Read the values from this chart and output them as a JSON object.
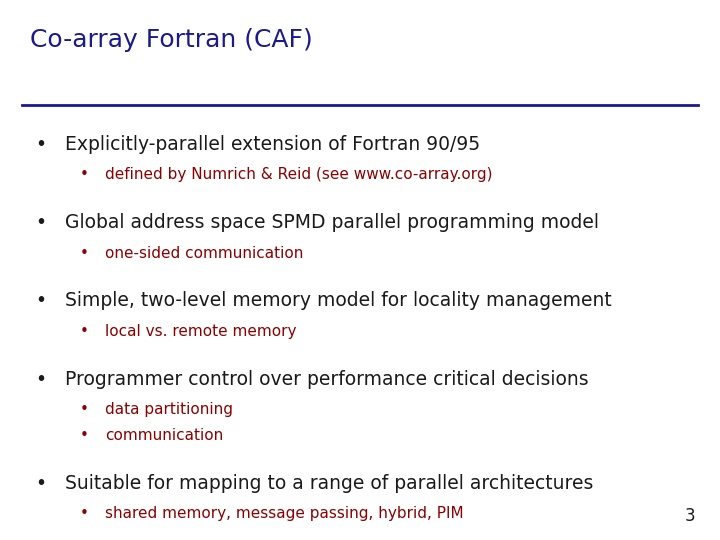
{
  "title": "Co-array Fortran (CAF)",
  "title_color": "#1a1a8c",
  "title_fontsize": 18,
  "background_color": "#ffffff",
  "line_color": "#1a1a8c",
  "bullet_color": "#1a1a1a",
  "sub_bullet_color": "#8b0000",
  "page_number": "3",
  "bullets": [
    {
      "text": "Explicitly-parallel extension of Fortran 90/95",
      "sub": [
        "defined by Numrich & Reid (see www.co-array.org)"
      ]
    },
    {
      "text": "Global address space SPMD parallel programming model",
      "sub": [
        "one-sided communication"
      ]
    },
    {
      "text": "Simple, two-level memory model for locality management",
      "sub": [
        "local vs. remote memory"
      ]
    },
    {
      "text": "Programmer control over performance critical decisions",
      "sub": [
        "data partitioning",
        "communication"
      ]
    },
    {
      "text": "Suitable for mapping to a range of parallel architectures",
      "sub": [
        "shared memory, message passing, hybrid, PIM"
      ]
    }
  ],
  "main_fontsize": 13.5,
  "sub_fontsize": 11.0,
  "page_num_fontsize": 12
}
